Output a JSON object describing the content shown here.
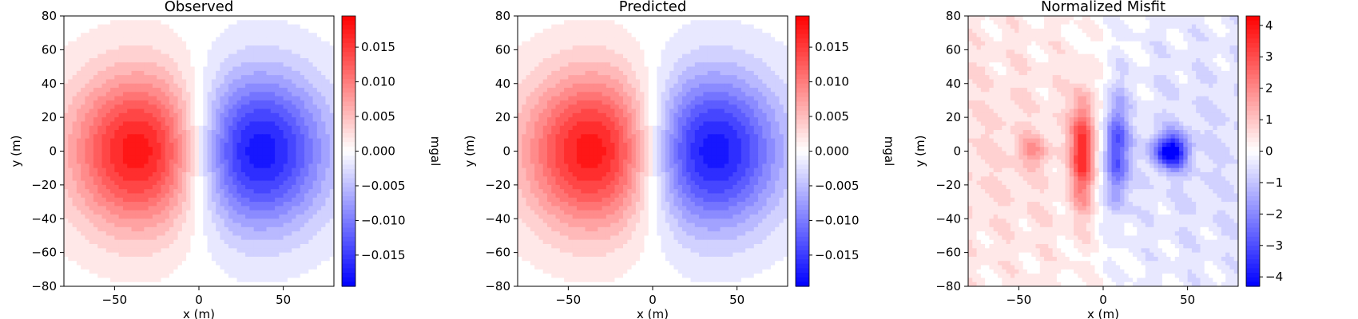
{
  "chart_data": [
    {
      "type": "heatmap",
      "title": "Observed",
      "xlabel": "x (m)",
      "ylabel": "y (m)",
      "xlim": [
        -80,
        80
      ],
      "ylim": [
        -80,
        80
      ],
      "xticks": [
        -50,
        0,
        50
      ],
      "yticks": [
        -80,
        -60,
        -40,
        -20,
        0,
        20,
        40,
        60,
        80
      ],
      "colormap": "bwr",
      "colorbar": {
        "label": "mgal",
        "range": [
          -0.0195,
          0.0195
        ],
        "ticks": [
          -0.015,
          -0.01,
          -0.005,
          0.0,
          0.005,
          0.01,
          0.015
        ],
        "tick_labels": [
          "−0.015",
          "−0.010",
          "−0.005",
          "0.000",
          "0.005",
          "0.010",
          "0.015"
        ]
      },
      "anomalies": [
        {
          "x": -32,
          "y": 0,
          "peak": 0.0195
        },
        {
          "x": 32,
          "y": 0,
          "peak": -0.0195
        }
      ]
    },
    {
      "type": "heatmap",
      "title": "Predicted",
      "xlabel": "x (m)",
      "ylabel": "y (m)",
      "xlim": [
        -80,
        80
      ],
      "ylim": [
        -80,
        80
      ],
      "xticks": [
        -50,
        0,
        50
      ],
      "yticks": [
        -80,
        -60,
        -40,
        -20,
        0,
        20,
        40,
        60,
        80
      ],
      "colormap": "bwr",
      "colorbar": {
        "label": "mgal",
        "range": [
          -0.0195,
          0.0195
        ],
        "ticks": [
          -0.015,
          -0.01,
          -0.005,
          0.0,
          0.005,
          0.01,
          0.015
        ],
        "tick_labels": [
          "−0.015",
          "−0.010",
          "−0.005",
          "0.000",
          "0.005",
          "0.010",
          "0.015"
        ]
      },
      "anomalies": [
        {
          "x": -32,
          "y": 0,
          "peak": 0.0195
        },
        {
          "x": 32,
          "y": 0,
          "peak": -0.0195
        }
      ]
    },
    {
      "type": "heatmap",
      "title": "Normalized Misfit",
      "xlabel": "x (m)",
      "ylabel": "y (m)",
      "xlim": [
        -80,
        80
      ],
      "ylim": [
        -80,
        80
      ],
      "xticks": [
        -50,
        0,
        50
      ],
      "yticks": [
        -80,
        -60,
        -40,
        -20,
        0,
        20,
        40,
        60,
        80
      ],
      "colormap": "bwr",
      "colorbar": {
        "label": "",
        "range": [
          -4.3,
          4.3
        ],
        "ticks": [
          -4,
          -3,
          -2,
          -1,
          0,
          1,
          2,
          3,
          4
        ],
        "tick_labels": [
          "−4",
          "−3",
          "−2",
          "−1",
          "0",
          "1",
          "2",
          "3",
          "4"
        ]
      },
      "anomalies": [
        {
          "x": -12,
          "y": 0,
          "peak": 3.4
        },
        {
          "x": 8,
          "y": 0,
          "peak": -3.0
        },
        {
          "x": 40,
          "y": 0,
          "peak": -4.2
        },
        {
          "x": -42,
          "y": 0,
          "peak": 1.3
        }
      ]
    }
  ]
}
